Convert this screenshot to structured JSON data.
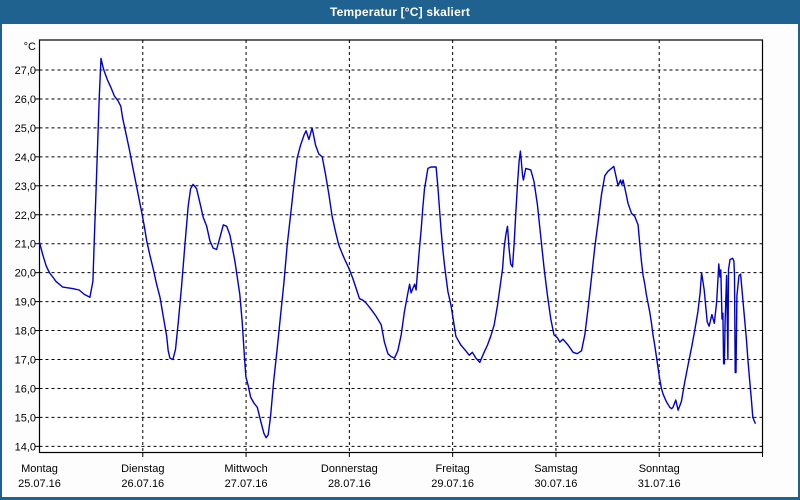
{
  "window": {
    "title": "Temperatur [°C] skaliert",
    "colors": {
      "titlebar": "#1F618F",
      "border": "#1F618F",
      "window_background": "#FCFDFC",
      "plot_background": "#FFFFFF",
      "grid": "#000000",
      "line": "#0000CD",
      "text": "#000000"
    }
  },
  "chart_data": {
    "type": "line",
    "title": "Temperatur [°C] skaliert",
    "ylabel": "°C",
    "grid": "dashed",
    "legend": "none",
    "y_axis": {
      "unit": "°C",
      "min": 14.0,
      "max": 27.0,
      "step": 1.0,
      "tick_labels": [
        "27,0",
        "26,0",
        "25,0",
        "24,0",
        "23,0",
        "22,0",
        "21,0",
        "20,0",
        "19,0",
        "18,0",
        "17,0",
        "16,0",
        "15,0",
        "14,0"
      ]
    },
    "x_axis": {
      "unit": "days",
      "span_hours": 168,
      "tick_labels": [
        {
          "day": "Montag",
          "date": "25.07.16"
        },
        {
          "day": "Dienstag",
          "date": "26.07.16"
        },
        {
          "day": "Mittwoch",
          "date": "27.07.16"
        },
        {
          "day": "Donnerstag",
          "date": "28.07.16"
        },
        {
          "day": "Freitag",
          "date": "29.07.16"
        },
        {
          "day": "Samstag",
          "date": "30.07.16"
        },
        {
          "day": "Sonntag",
          "date": "31.07.16"
        }
      ]
    },
    "series": [
      {
        "name": "Temperatur",
        "color": "#0000CD",
        "points_hours_temp": [
          [
            0,
            21.05
          ],
          [
            0.7,
            20.65
          ],
          [
            1.5,
            20.25
          ],
          [
            2.3,
            20.0
          ],
          [
            3.1,
            19.85
          ],
          [
            3.8,
            19.7
          ],
          [
            5.4,
            19.5
          ],
          [
            7.7,
            19.45
          ],
          [
            9.2,
            19.4
          ],
          [
            10.4,
            19.25
          ],
          [
            11.7,
            19.15
          ],
          [
            12.4,
            19.7
          ],
          [
            12.7,
            21.05
          ],
          [
            13.1,
            22.7
          ],
          [
            13.5,
            24.4
          ],
          [
            13.9,
            26.1
          ],
          [
            14.3,
            27.4
          ],
          [
            14.75,
            27.1
          ],
          [
            15.05,
            26.95
          ],
          [
            15.8,
            26.65
          ],
          [
            16.6,
            26.4
          ],
          [
            17.4,
            26.1
          ],
          [
            18.2,
            25.95
          ],
          [
            18.9,
            25.75
          ],
          [
            19.3,
            25.35
          ],
          [
            20.1,
            24.8
          ],
          [
            20.9,
            24.25
          ],
          [
            21.65,
            23.65
          ],
          [
            22.4,
            23.1
          ],
          [
            23.2,
            22.5
          ],
          [
            23.8,
            22.05
          ],
          [
            24.35,
            21.6
          ],
          [
            24.9,
            21.1
          ],
          [
            25.65,
            20.6
          ],
          [
            26.4,
            20.15
          ],
          [
            27.2,
            19.6
          ],
          [
            28.0,
            19.15
          ],
          [
            28.75,
            18.5
          ],
          [
            29.55,
            17.8
          ],
          [
            29.9,
            17.3
          ],
          [
            30.3,
            17.05
          ],
          [
            31.0,
            17.0
          ],
          [
            31.6,
            17.35
          ],
          [
            32.25,
            18.3
          ],
          [
            33.0,
            19.5
          ],
          [
            33.8,
            21.0
          ],
          [
            34.55,
            22.3
          ],
          [
            35.1,
            22.9
          ],
          [
            35.7,
            23.05
          ],
          [
            36.5,
            22.9
          ],
          [
            37.3,
            22.4
          ],
          [
            38.05,
            21.9
          ],
          [
            38.85,
            21.6
          ],
          [
            39.6,
            21.1
          ],
          [
            40.35,
            20.85
          ],
          [
            41.15,
            20.8
          ],
          [
            41.9,
            21.2
          ],
          [
            42.7,
            21.65
          ],
          [
            43.5,
            21.6
          ],
          [
            44.25,
            21.3
          ],
          [
            45.4,
            20.4
          ],
          [
            46.55,
            19.25
          ],
          [
            47.1,
            18.3
          ],
          [
            47.65,
            17.0
          ],
          [
            47.95,
            16.4
          ],
          [
            48.5,
            16.1
          ],
          [
            49.05,
            15.7
          ],
          [
            49.8,
            15.5
          ],
          [
            50.6,
            15.35
          ],
          [
            51.35,
            14.9
          ],
          [
            52.15,
            14.45
          ],
          [
            52.65,
            14.3
          ],
          [
            53.15,
            14.4
          ],
          [
            53.7,
            15.05
          ],
          [
            54.45,
            16.3
          ],
          [
            55.2,
            17.35
          ],
          [
            56.0,
            18.5
          ],
          [
            56.8,
            19.65
          ],
          [
            57.55,
            20.95
          ],
          [
            58.35,
            22.0
          ],
          [
            59.1,
            23.0
          ],
          [
            59.85,
            23.95
          ],
          [
            60.65,
            24.4
          ],
          [
            61.45,
            24.75
          ],
          [
            61.95,
            24.9
          ],
          [
            62.6,
            24.6
          ],
          [
            63.35,
            25.0
          ],
          [
            64.15,
            24.4
          ],
          [
            64.9,
            24.1
          ],
          [
            65.7,
            24.0
          ],
          [
            66.45,
            23.4
          ],
          [
            67.25,
            22.7
          ],
          [
            68.0,
            21.95
          ],
          [
            68.8,
            21.4
          ],
          [
            69.55,
            20.95
          ],
          [
            70.35,
            20.65
          ],
          [
            71.1,
            20.4
          ],
          [
            71.9,
            20.15
          ],
          [
            72.8,
            19.8
          ],
          [
            73.6,
            19.45
          ],
          [
            74.35,
            19.1
          ],
          [
            75.15,
            19.05
          ],
          [
            75.9,
            18.95
          ],
          [
            76.7,
            18.8
          ],
          [
            77.45,
            18.65
          ],
          [
            78.2,
            18.5
          ],
          [
            79.4,
            18.2
          ],
          [
            80.15,
            17.6
          ],
          [
            80.95,
            17.2
          ],
          [
            81.7,
            17.1
          ],
          [
            82.5,
            17.05
          ],
          [
            83.25,
            17.3
          ],
          [
            84.05,
            17.85
          ],
          [
            84.8,
            18.65
          ],
          [
            85.6,
            19.3
          ],
          [
            86.0,
            19.6
          ],
          [
            86.35,
            19.3
          ],
          [
            87.15,
            19.6
          ],
          [
            87.5,
            19.4
          ],
          [
            87.9,
            20.15
          ],
          [
            88.3,
            20.85
          ],
          [
            88.7,
            21.5
          ],
          [
            89.05,
            22.2
          ],
          [
            89.45,
            22.9
          ],
          [
            89.85,
            23.25
          ],
          [
            90.25,
            23.6
          ],
          [
            90.95,
            23.65
          ],
          [
            92.15,
            23.65
          ],
          [
            92.55,
            23.0
          ],
          [
            92.95,
            22.2
          ],
          [
            93.3,
            21.5
          ],
          [
            93.7,
            20.85
          ],
          [
            94.1,
            20.25
          ],
          [
            94.5,
            19.8
          ],
          [
            94.9,
            19.35
          ],
          [
            95.65,
            18.85
          ],
          [
            96.75,
            17.8
          ],
          [
            97.9,
            17.5
          ],
          [
            99.05,
            17.3
          ],
          [
            99.85,
            17.15
          ],
          [
            100.6,
            17.25
          ],
          [
            101.4,
            17.05
          ],
          [
            102.3,
            16.9
          ],
          [
            103.3,
            17.25
          ],
          [
            104.1,
            17.5
          ],
          [
            104.85,
            17.8
          ],
          [
            105.65,
            18.2
          ],
          [
            106.4,
            18.85
          ],
          [
            107.2,
            19.7
          ],
          [
            107.6,
            20.15
          ],
          [
            107.95,
            20.85
          ],
          [
            108.35,
            21.3
          ],
          [
            108.75,
            21.6
          ],
          [
            109.1,
            20.85
          ],
          [
            109.5,
            20.3
          ],
          [
            109.9,
            20.2
          ],
          [
            110.3,
            21.05
          ],
          [
            110.65,
            22.0
          ],
          [
            111.05,
            23.0
          ],
          [
            111.45,
            23.85
          ],
          [
            111.75,
            24.2
          ],
          [
            112.25,
            23.35
          ],
          [
            112.45,
            23.2
          ],
          [
            113.0,
            23.6
          ],
          [
            114.15,
            23.55
          ],
          [
            114.9,
            23.15
          ],
          [
            115.7,
            22.35
          ],
          [
            116.5,
            21.2
          ],
          [
            117.25,
            20.15
          ],
          [
            118.05,
            19.2
          ],
          [
            118.8,
            18.4
          ],
          [
            119.55,
            17.85
          ],
          [
            120.35,
            17.75
          ],
          [
            120.9,
            17.6
          ],
          [
            121.65,
            17.7
          ],
          [
            122.8,
            17.5
          ],
          [
            124.0,
            17.25
          ],
          [
            124.95,
            17.2
          ],
          [
            125.95,
            17.3
          ],
          [
            126.7,
            17.85
          ],
          [
            127.45,
            18.75
          ],
          [
            128.25,
            19.8
          ],
          [
            129.0,
            20.85
          ],
          [
            129.8,
            21.75
          ],
          [
            130.6,
            22.7
          ],
          [
            131.35,
            23.35
          ],
          [
            132.1,
            23.5
          ],
          [
            133.45,
            23.67
          ],
          [
            134.45,
            23.0
          ],
          [
            135.0,
            23.2
          ],
          [
            135.3,
            23.05
          ],
          [
            135.6,
            23.2
          ],
          [
            136.2,
            22.8
          ],
          [
            136.75,
            22.4
          ],
          [
            137.55,
            22.05
          ],
          [
            138.3,
            21.95
          ],
          [
            139.1,
            21.65
          ],
          [
            139.45,
            21.05
          ],
          [
            139.85,
            20.4
          ],
          [
            140.25,
            19.9
          ],
          [
            140.65,
            19.6
          ],
          [
            141.0,
            19.25
          ],
          [
            141.4,
            18.95
          ],
          [
            141.8,
            18.65
          ],
          [
            142.2,
            18.25
          ],
          [
            142.55,
            17.85
          ],
          [
            142.95,
            17.5
          ],
          [
            143.35,
            17.1
          ],
          [
            143.7,
            16.75
          ],
          [
            144.1,
            16.35
          ],
          [
            144.5,
            16.0
          ],
          [
            144.9,
            15.8
          ],
          [
            145.65,
            15.55
          ],
          [
            146.45,
            15.35
          ],
          [
            146.85,
            15.3
          ],
          [
            147.2,
            15.35
          ],
          [
            147.85,
            15.6
          ],
          [
            148.4,
            15.25
          ],
          [
            149.15,
            15.55
          ],
          [
            149.9,
            16.2
          ],
          [
            150.7,
            16.8
          ],
          [
            151.5,
            17.4
          ],
          [
            152.25,
            18.0
          ],
          [
            153.0,
            18.65
          ],
          [
            153.5,
            19.3
          ],
          [
            153.85,
            20.0
          ],
          [
            154.45,
            19.4
          ],
          [
            155.15,
            18.3
          ],
          [
            155.6,
            18.15
          ],
          [
            156.25,
            18.55
          ],
          [
            156.8,
            18.25
          ],
          [
            157.35,
            19.0
          ],
          [
            157.85,
            20.3
          ],
          [
            158.1,
            19.85
          ],
          [
            158.3,
            20.1
          ],
          [
            158.6,
            18.4
          ],
          [
            158.8,
            18.6
          ],
          [
            158.95,
            16.85
          ],
          [
            159.15,
            16.85
          ],
          [
            159.3,
            18.3
          ],
          [
            159.65,
            19.9
          ],
          [
            159.95,
            17.0
          ],
          [
            160.1,
            20.1
          ],
          [
            160.45,
            20.45
          ],
          [
            161.05,
            20.5
          ],
          [
            161.35,
            20.4
          ],
          [
            161.5,
            19.9
          ],
          [
            161.65,
            16.55
          ],
          [
            161.85,
            16.55
          ],
          [
            162.05,
            19.2
          ],
          [
            162.55,
            19.9
          ],
          [
            162.9,
            19.95
          ],
          [
            163.45,
            19.05
          ],
          [
            163.85,
            18.4
          ],
          [
            164.25,
            17.7
          ],
          [
            164.6,
            17.0
          ],
          [
            165.0,
            16.3
          ],
          [
            165.4,
            15.65
          ],
          [
            165.75,
            15.0
          ],
          [
            166.3,
            14.8
          ]
        ]
      }
    ]
  }
}
